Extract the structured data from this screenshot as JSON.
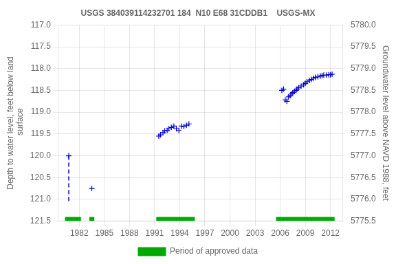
{
  "chart_data": {
    "type": "scatter",
    "title": "USGS 384039114232701 184  N10 E68 31CDDB1    USGS-MX",
    "ylabel": "Depth to water level, feet below land\n surface",
    "y2label": "Groundwater level above NAVD 1988, feet",
    "xlim": [
      1979.5,
      2013.5
    ],
    "xticks": [
      1982,
      1985,
      1988,
      1991,
      1994,
      1997,
      2000,
      2003,
      2006,
      2009,
      2012
    ],
    "ylim": [
      121.5,
      117.0
    ],
    "yticks": [
      {
        "value": 117.0,
        "label": "117.0"
      },
      117.5,
      {
        "value": 118.0,
        "label": "118.0"
      },
      118.5,
      {
        "value": 119.0,
        "label": "119.0"
      },
      119.5,
      {
        "value": 120.0,
        "label": "120.0"
      },
      120.5,
      {
        "value": 121.0,
        "label": "121.0"
      },
      121.5
    ],
    "y2lim": [
      5775.5,
      5780.0
    ],
    "y2ticks": [
      5775.5,
      {
        "value": 5776.0,
        "label": "5776.0"
      },
      5776.5,
      {
        "value": 5777.0,
        "label": "5777.0"
      },
      5777.5,
      {
        "value": 5778.0,
        "label": "5778.0"
      },
      5778.5,
      {
        "value": 5779.0,
        "label": "5779.0"
      },
      5779.5,
      {
        "value": 5780.0,
        "label": "5780.0"
      }
    ],
    "grid": true,
    "legend": "bottom",
    "series": [
      {
        "name": "Period of approved data",
        "type": "period",
        "color": "#00aa00",
        "periods": [
          [
            1980.3,
            1982.2
          ],
          [
            1983.2,
            1983.8
          ],
          [
            1991.2,
            1995.8
          ],
          [
            2005.5,
            2012.5
          ]
        ]
      },
      {
        "type": "line",
        "line_style": "dashed",
        "color": "#0000cc",
        "x": [
          1980.75,
          1980.75
        ],
        "values": [
          120.0,
          121.05
        ]
      },
      {
        "type": "scatter",
        "marker": "plus",
        "color": "#0000cc",
        "x": [
          1980.75
        ],
        "values": [
          120.0
        ]
      },
      {
        "type": "scatter",
        "marker": "plus",
        "color": "#0000cc",
        "x": [
          1983.5
        ],
        "values": [
          120.75
        ]
      },
      {
        "type": "scatter",
        "marker": "plus",
        "color": "#0000cc",
        "x": [
          1991.5,
          1991.7,
          1992.0,
          1992.2,
          1992.5,
          1992.7,
          1993.0,
          1993.3,
          1993.6,
          1993.9,
          1994.2,
          1994.5,
          1994.8,
          1995.1
        ],
        "values": [
          119.55,
          119.52,
          119.47,
          119.43,
          119.42,
          119.38,
          119.35,
          119.32,
          119.38,
          119.42,
          119.32,
          119.33,
          119.3,
          119.27
        ]
      },
      {
        "type": "scatter",
        "marker": "plus",
        "color": "#0000cc",
        "x": [
          2006.2,
          2006.4,
          2006.6,
          2006.8,
          2007.0,
          2007.2,
          2007.4,
          2007.5,
          2007.7,
          2007.9,
          2008.0,
          2008.2,
          2008.5,
          2008.8,
          2009.0,
          2009.2,
          2009.5,
          2009.7,
          2010.0,
          2010.2,
          2010.5,
          2010.8,
          2011.0,
          2011.2,
          2011.5,
          2011.8,
          2012.0,
          2012.2
        ],
        "values": [
          118.5,
          118.47,
          118.72,
          118.75,
          118.65,
          118.62,
          118.58,
          118.55,
          118.52,
          118.5,
          118.47,
          118.44,
          118.4,
          118.37,
          118.34,
          118.3,
          118.27,
          118.25,
          118.22,
          118.2,
          118.19,
          118.17,
          118.16,
          118.15,
          118.15,
          118.14,
          118.14,
          118.13
        ]
      }
    ]
  }
}
